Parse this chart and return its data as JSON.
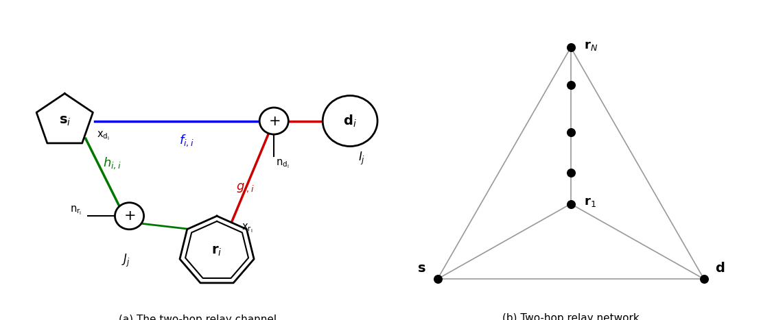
{
  "fig_width": 11.09,
  "fig_height": 4.67,
  "bg_color": "#ffffff",
  "caption_a": "(a) The two-hop relay channel",
  "caption_b": "(b) Two-hop relay network",
  "line_color_blue": "#0000ee",
  "line_color_green": "#007700",
  "line_color_red": "#cc0000",
  "line_color_black": "#000000",
  "gray": "#999999"
}
